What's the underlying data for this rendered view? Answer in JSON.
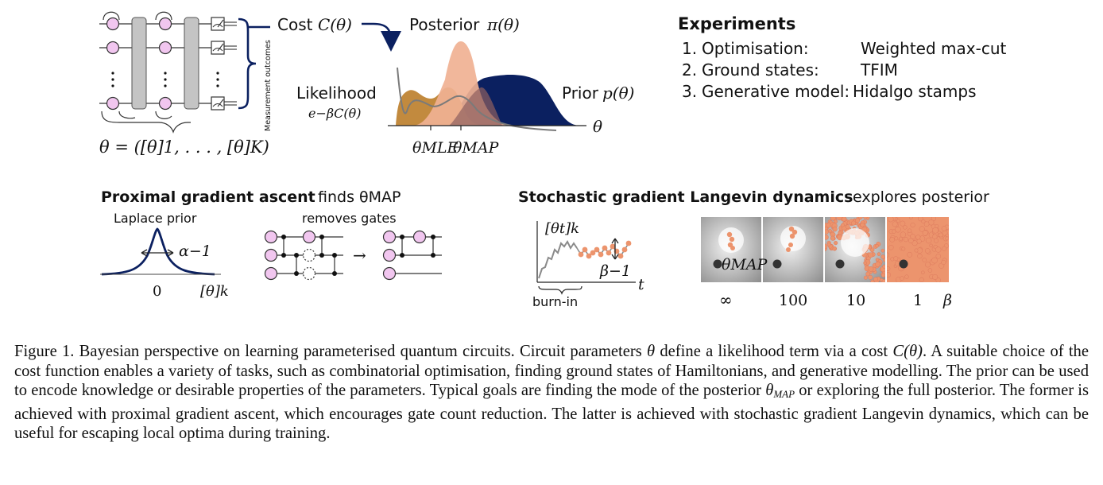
{
  "top": {
    "theta_def": "θ = ([θ]1, . . . , [θ]K)",
    "measurement_label": "Measurement outcomes",
    "cost_word": "Cost",
    "cost_math": "C(θ)",
    "posterior_word": "Posterior",
    "posterior_math": "π(θ)",
    "likelihood_word": "Likelihood",
    "likelihood_math": "e−βC(θ)",
    "prior_word": "Prior",
    "prior_math": "p(θ)",
    "axis_theta": "θ",
    "theta_mle": "θMLE",
    "theta_map": "θMAP"
  },
  "experiments": {
    "heading": "Experiments",
    "items": [
      {
        "num": "1.",
        "task": "Optimisation:",
        "target": "Weighted max-cut"
      },
      {
        "num": "2.",
        "task": "Ground states:",
        "target": "TFIM"
      },
      {
        "num": "3.",
        "task": "Generative model:",
        "target": "Hidalgo stamps"
      }
    ]
  },
  "proximal": {
    "heading_bold": "Proximal gradient ascent",
    "heading_rest": "finds θMAP",
    "laplace_label": "Laplace prior",
    "alpha_label": "α−1",
    "tick_zero": "0",
    "axis_label": "[θ]k",
    "removes_label": "removes gates",
    "arrow": "→"
  },
  "langevin": {
    "heading_bold": "Stochastic gradient Langevin dynamics",
    "heading_rest": "explores posterior",
    "trace_label": "[θt]k",
    "beta_label": "β−1",
    "t_label": "t",
    "burnin_label": "burn-in",
    "map_label": "θMAP",
    "beta_values": [
      "∞",
      "100",
      "10",
      "1"
    ],
    "beta_axis": "β"
  },
  "colors": {
    "navy": "#0b2060",
    "likelihood": "#c28a3e",
    "posterior": "#f0b193",
    "overlap": "#8e6060",
    "qubit": "#f1c6ef",
    "gate_gray": "#c4c4c4",
    "sample": "#ec946d"
  },
  "caption": {
    "lead": "Figure 1. Bayesian perspective on learning parameterised quantum circuits. Circuit parameters",
    "p1": "define a likelihood term via a cost",
    "p2": ". A suitable choice of the cost function enables a variety of tasks, such as combinatorial optimisation, finding ground states of Hamiltonians, and generative modelling. The prior can be used to encode knowledge or desirable properties of the parameters. Typical goals are finding the mode of the posterior",
    "p3": "or exploring the full posterior. The former is achieved with proximal gradient ascent, which encourages gate count reduction. The latter is achieved with stochastic gradient Langevin dynamics, which can be useful for escaping local optima during training.",
    "theta": "θ",
    "cost": "C(θ)",
    "theta_map_base": "θ",
    "theta_map_sub": "MAP"
  }
}
